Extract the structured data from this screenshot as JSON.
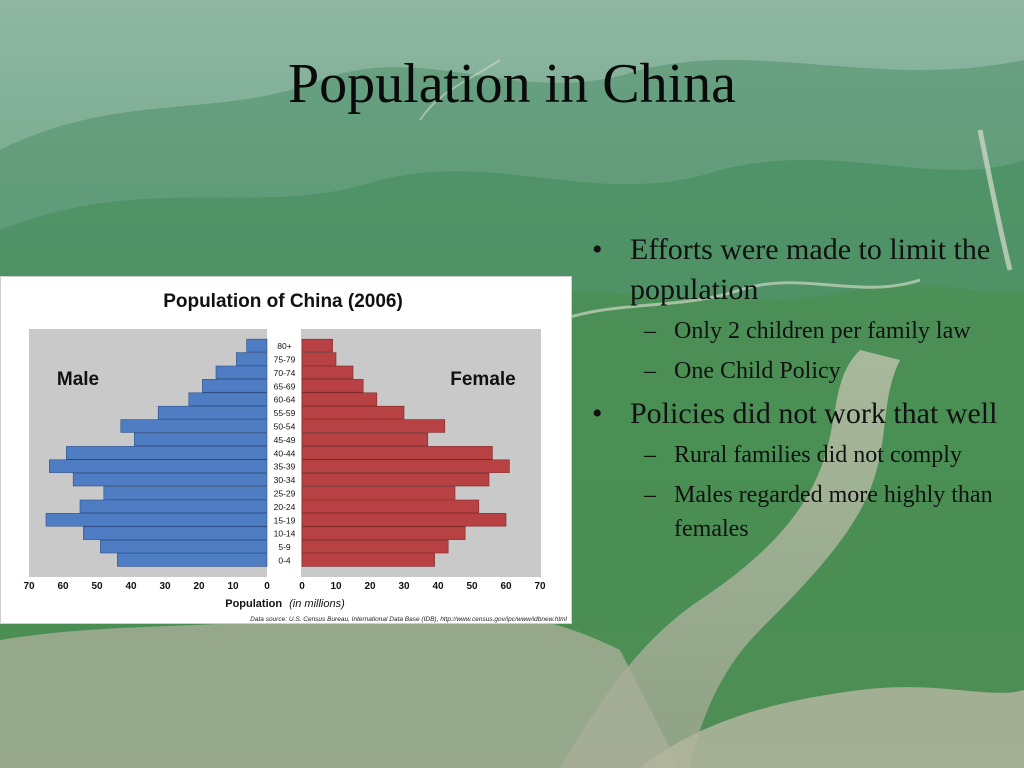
{
  "slide": {
    "title": "Population in China",
    "bullets": [
      {
        "text": "Efforts were made to limit the population",
        "sub": [
          "Only 2 children per family law",
          "One Child Policy"
        ]
      },
      {
        "text": "Policies did not work that well",
        "sub": [
          "Rural families did not comply",
          "Males regarded more highly than females"
        ]
      }
    ],
    "bullet_marker": "•",
    "sub_marker": "–"
  },
  "chart_data": {
    "type": "bar",
    "orientation": "horizontal",
    "title": "Population of China (2006)",
    "categories": [
      "0-4",
      "5-9",
      "10-14",
      "15-19",
      "20-24",
      "25-29",
      "30-34",
      "35-39",
      "40-44",
      "45-49",
      "50-54",
      "55-59",
      "60-64",
      "65-69",
      "70-74",
      "75-79",
      "80+"
    ],
    "series": [
      {
        "name": "Male",
        "color": "#4f7dc4",
        "values": [
          44,
          49,
          54,
          65,
          55,
          48,
          57,
          64,
          59,
          39,
          43,
          32,
          23,
          19,
          15,
          9,
          6
        ]
      },
      {
        "name": "Female",
        "color": "#b84243",
        "values": [
          39,
          43,
          48,
          60,
          52,
          45,
          55,
          61,
          56,
          37,
          42,
          30,
          22,
          18,
          15,
          10,
          9
        ]
      }
    ],
    "xlabel": "Population",
    "xlabel_units": "(in millions)",
    "xlim": [
      0,
      70
    ],
    "x_ticks_male": [
      70,
      60,
      50,
      40,
      30,
      20,
      10,
      0
    ],
    "x_ticks_female": [
      0,
      10,
      20,
      30,
      40,
      50,
      60,
      70
    ],
    "source": "Data source: U.S. Census Bureau, International Data Base (IDB), http://www.census.gov/ipc/www/idbnew.html",
    "grid": false,
    "plot_background": "#c9c9c9",
    "legend_placement": "inside-top"
  }
}
